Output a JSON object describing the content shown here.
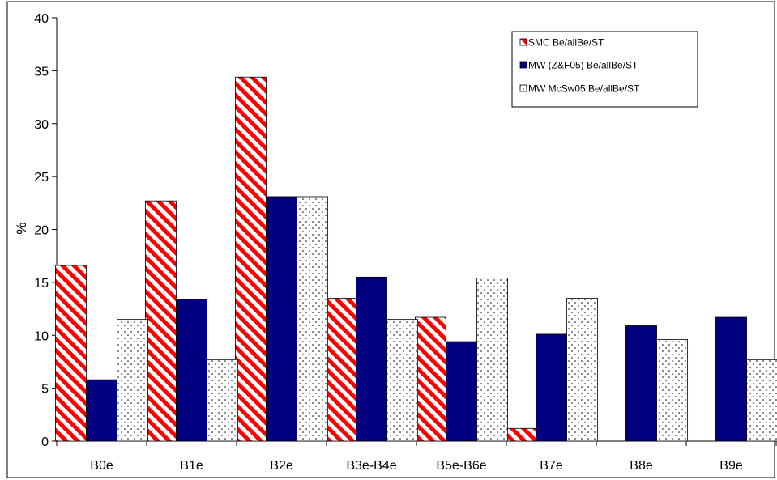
{
  "chart_data": {
    "type": "bar",
    "title": "",
    "xlabel": "",
    "ylabel": "%",
    "ylim": [
      0,
      40
    ],
    "yticks": [
      0,
      5,
      10,
      15,
      20,
      25,
      30,
      35,
      40
    ],
    "grid": false,
    "legend_position": "top-right",
    "categories": [
      "B0e",
      "B1e",
      "B2e",
      "B3e-B4e",
      "B5e-B6e",
      "B7e",
      "B8e",
      "B9e"
    ],
    "series": [
      {
        "name": "SMC Be/allBe/ST",
        "pattern": "diagonal-hatch",
        "color": "#ff0000",
        "values": [
          16.6,
          22.7,
          34.4,
          13.5,
          11.7,
          1.2,
          0,
          0
        ]
      },
      {
        "name": "MW (Z&F05) Be/allBe/ST",
        "pattern": "solid",
        "color": "#000080",
        "values": [
          5.8,
          13.4,
          23.1,
          15.5,
          9.4,
          10.1,
          10.9,
          11.7
        ]
      },
      {
        "name": "MW McSw05 Be/allBe/ST",
        "pattern": "dots",
        "color": "#ffffff",
        "values": [
          11.5,
          7.7,
          23.1,
          11.5,
          15.4,
          13.5,
          9.6,
          7.7
        ]
      }
    ]
  }
}
